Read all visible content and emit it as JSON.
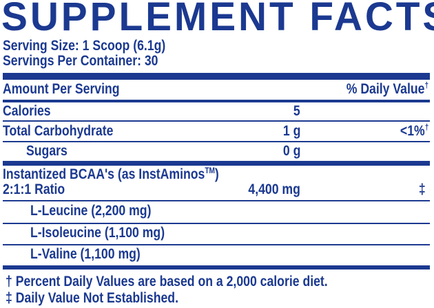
{
  "title": "SUPPLEMENT FACTS",
  "serving_size": "Serving Size: 1 Scoop (6.1g)",
  "servings_per_container": "Servings Per Container: 30",
  "header": {
    "amount": "Amount Per Serving",
    "daily_value": "% Daily Value",
    "daily_value_mark": "†"
  },
  "rows": [
    {
      "name": "Calories",
      "amount": "5",
      "dv": ""
    },
    {
      "name": "Total Carbohydrate",
      "amount": "1 g",
      "dv": "<1%",
      "dv_mark": "†"
    },
    {
      "name": "Sugars",
      "amount": "0 g",
      "dv": ""
    }
  ],
  "blend": {
    "name": "Instantized BCAA's (as InstAminos",
    "tm": "TM",
    "close": ")",
    "ratio": "2:1:1 Ratio",
    "amount": "4,400 mg",
    "dv": "‡"
  },
  "components": [
    "L-Leucine (2,200 mg)",
    "L-Isoleucine (1,100 mg)",
    "L-Valine (1,100 mg)"
  ],
  "footnotes": [
    "† Percent Daily Values are based on a 2,000 calorie diet.",
    "‡ Daily Value Not Established."
  ],
  "colors": {
    "ink": "#1b3990",
    "background": "#ffffff"
  }
}
